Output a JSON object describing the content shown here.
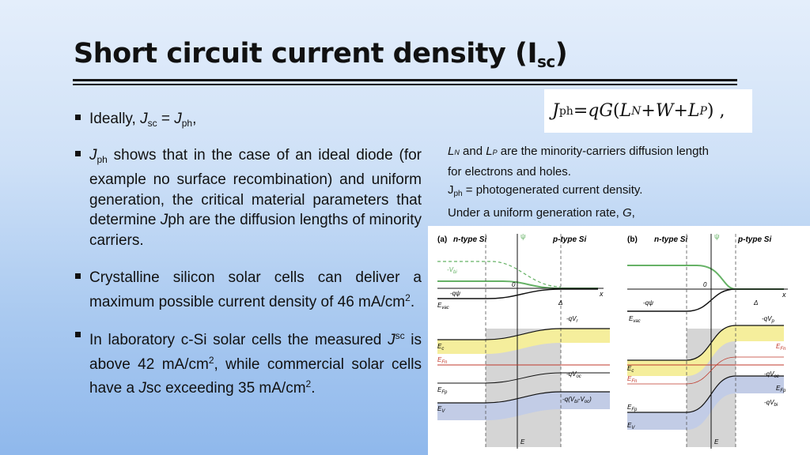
{
  "slide": {
    "title": "Short circuit current density (I",
    "title_sub": "sc",
    "title_end": ")"
  },
  "bullets": {
    "b1": {
      "a": "Ideally, ",
      "j1": "J",
      "s1": "sc",
      "eq": " = ",
      "j2": "J",
      "s2": "ph",
      "end": ","
    },
    "b2": {
      "j": "J",
      "s": "ph",
      "a": " shows that in the case of an ideal diode (for example no surface recombination) and uniform generation, the critical material parameters that determine ",
      "j2": "J",
      "b": "ph are the diffusion lengths of minority carriers."
    },
    "b3": {
      "a": "Crystalline silicon solar cells can deliver a maximum possible current density of 46 mA/cm",
      "sup": "2",
      "end": "."
    },
    "b4": {
      "a": "In laboratory c-Si solar cells the measured ",
      "j": "J",
      "sup1": "sc",
      "b": " is above 42 mA/cm",
      "sup2": "2",
      "c": ", while commercial solar cells have a ",
      "j2": "J",
      "d": "sc exceeding 35 mA/cm",
      "sup3": "2",
      "end": "."
    }
  },
  "equation": {
    "lhs": "J",
    "lhs_sub": "ph",
    "eq": " = ",
    "q": "q",
    "G": "G",
    "open": " (",
    "L": "L",
    "N": "N",
    "plus1": " + ",
    "W": "W",
    "plus2": " + ",
    "L2": "L",
    "P": "P",
    "close": ") ,"
  },
  "notes": {
    "l1_L": "L",
    "l1_N": "N",
    "l1_and": " and ",
    "l1_L2": "L",
    "l1_P": "P",
    "l1_rest": " are the minority-carriers diffusion length",
    "l2": "for electrons and holes.",
    "l3_J": "J",
    "l3_sub": "ph",
    "l3_rest": " = photogenerated current density.",
    "l4_a": "Under a uniform generation rate, ",
    "l4_G": "G",
    "l4_end": ","
  },
  "diagram": {
    "a": {
      "label": "(a)",
      "n": "n-type Si",
      "p": "p-type Si",
      "psi": "ψ",
      "x": "x",
      "zero": "0",
      "vbi": "-V",
      "vbi_sub": "bi",
      "qpsi": "-qψ",
      "evac": "E",
      "evac_sub": "vac",
      "chi": "-qV",
      "chi_sub": "r",
      "ec": "E",
      "ec_sub": "c",
      "efn": "E",
      "efn_sub": "Fn",
      "efp": "E",
      "efp_sub": "Fp",
      "ev": "E",
      "ev_sub": "V",
      "qvoc": "-qV",
      "qvoc_sub": "oc",
      "qvbi": "-q(V",
      "qvbi_sub": "bi",
      "qvbi_mid": "-V",
      "qvbi_sub2": "oc",
      "qvbi_end": ")",
      "e": "E",
      "delta": "Δ"
    },
    "b": {
      "label": "(b)",
      "n": "n-type Si",
      "p": "p-type Si",
      "psi": "ψ",
      "x": "x",
      "zero": "0",
      "qpsi": "-qψ",
      "evac": "E",
      "evac_sub": "vac",
      "chi": "-qV",
      "chi_sub": "p",
      "ec": "E",
      "ec_sub": "c",
      "efn": "E",
      "efn_sub": "Fn",
      "efp": "E",
      "efp_sub": "Fp",
      "ev": "E",
      "ev_sub": "V",
      "qvoc": "-qV",
      "qvoc_sub": "oc",
      "efn2": "E",
      "efn2_sub": "Fn",
      "efp2": "E",
      "efp2_sub": "Fp",
      "qvbi": "-qV",
      "qvbi_sub": "bi",
      "e": "E",
      "delta": "Δ"
    },
    "colors": {
      "conduction": "#f5ee9c",
      "valence": "#c2cce6",
      "depletion": "#d5d5d5",
      "potential": "#66b266",
      "fermi": "#c0392b"
    }
  }
}
